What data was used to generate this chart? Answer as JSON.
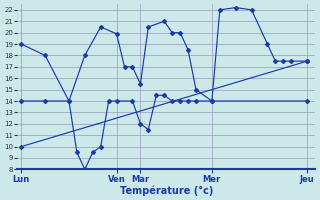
{
  "background_color": "#cce8e8",
  "grid_color": "#9999bb",
  "line_color": "#1a3aaa",
  "xlabel": "Température (°c)",
  "ylim": [
    8,
    22.5
  ],
  "ytick_min": 8,
  "ytick_max": 22,
  "day_labels": [
    "Lun",
    "Ven",
    "Mar",
    "Mer",
    "Jeu"
  ],
  "day_positions": [
    0,
    12,
    15,
    24,
    36
  ],
  "line1": {
    "x": [
      0,
      3,
      6,
      8,
      10,
      12,
      13,
      14,
      15,
      16,
      18,
      19,
      20,
      21,
      22,
      24,
      25,
      27,
      29,
      31,
      32,
      33,
      34,
      36
    ],
    "y": [
      19,
      18,
      14,
      18,
      20.5,
      19.9,
      17,
      17,
      15.5,
      20.5,
      21,
      20,
      20,
      18.5,
      15,
      14,
      22,
      22.2,
      22,
      19,
      17.5,
      17.5,
      17.5,
      17.5
    ]
  },
  "line2": {
    "x": [
      0,
      3,
      6,
      7,
      8,
      9,
      10,
      11,
      12,
      14,
      15,
      16,
      17,
      18,
      19,
      20,
      21,
      22,
      24,
      36
    ],
    "y": [
      14,
      14,
      14,
      9.5,
      8,
      9.5,
      10,
      14,
      14,
      14,
      12,
      11.5,
      14.5,
      14.5,
      14,
      14,
      14,
      14,
      14,
      14
    ]
  },
  "line3": {
    "x": [
      0,
      36
    ],
    "y": [
      10,
      17.5
    ]
  }
}
